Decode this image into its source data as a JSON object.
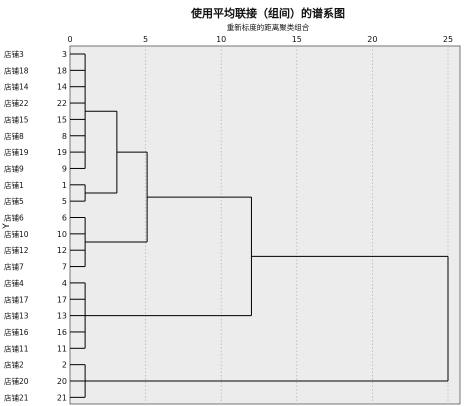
{
  "chart_data": {
    "type": "dendrogram",
    "title": "使用平均联接（组间）的谱系图",
    "subtitle": "重新标度的距离聚类组合",
    "ylabel": "Y",
    "x_axis": {
      "range": [
        0,
        25
      ],
      "ticks": [
        "0",
        "5",
        "10",
        "15",
        "20",
        "25"
      ]
    },
    "grid": "vertical dotted",
    "background": "#ececec",
    "leaves": [
      {
        "label": "店铺3",
        "case": "3"
      },
      {
        "label": "店铺18",
        "case": "18"
      },
      {
        "label": "店铺14",
        "case": "14"
      },
      {
        "label": "店铺22",
        "case": "22"
      },
      {
        "label": "店铺15",
        "case": "15"
      },
      {
        "label": "店铺8",
        "case": "8"
      },
      {
        "label": "店铺19",
        "case": "19"
      },
      {
        "label": "店铺9",
        "case": "9"
      },
      {
        "label": "店铺1",
        "case": "1"
      },
      {
        "label": "店铺5",
        "case": "5"
      },
      {
        "label": "店铺6",
        "case": "6"
      },
      {
        "label": "店铺10",
        "case": "10"
      },
      {
        "label": "店铺12",
        "case": "12"
      },
      {
        "label": "店铺7",
        "case": "7"
      },
      {
        "label": "店铺4",
        "case": "4"
      },
      {
        "label": "店铺17",
        "case": "17"
      },
      {
        "label": "店铺13",
        "case": "13"
      },
      {
        "label": "店铺16",
        "case": "16"
      },
      {
        "label": "店铺11",
        "case": "11"
      },
      {
        "label": "店铺2",
        "case": "2"
      },
      {
        "label": "店铺20",
        "case": "20"
      },
      {
        "label": "店铺21",
        "case": "21"
      }
    ],
    "merges": [
      {
        "children": [
          "L0",
          "L1",
          "L2",
          "L3",
          "L4",
          "L5",
          "L6",
          "L7"
        ],
        "height": 1,
        "name": "A"
      },
      {
        "children": [
          "L8",
          "L9"
        ],
        "height": 1,
        "name": "B"
      },
      {
        "children": [
          "A",
          "B"
        ],
        "height": 3.1,
        "name": "C"
      },
      {
        "children": [
          "L10",
          "L11",
          "L12",
          "L13"
        ],
        "height": 1,
        "name": "D"
      },
      {
        "children": [
          "C",
          "D"
        ],
        "height": 5.1,
        "name": "E"
      },
      {
        "children": [
          "L14",
          "L15",
          "L16",
          "L17",
          "L18"
        ],
        "height": 1,
        "name": "F"
      },
      {
        "children": [
          "E",
          "F"
        ],
        "height": 12,
        "name": "G"
      },
      {
        "children": [
          "L19",
          "L20",
          "L21"
        ],
        "height": 1,
        "name": "H"
      },
      {
        "children": [
          "G",
          "H"
        ],
        "height": 25,
        "name": "Root"
      }
    ]
  }
}
